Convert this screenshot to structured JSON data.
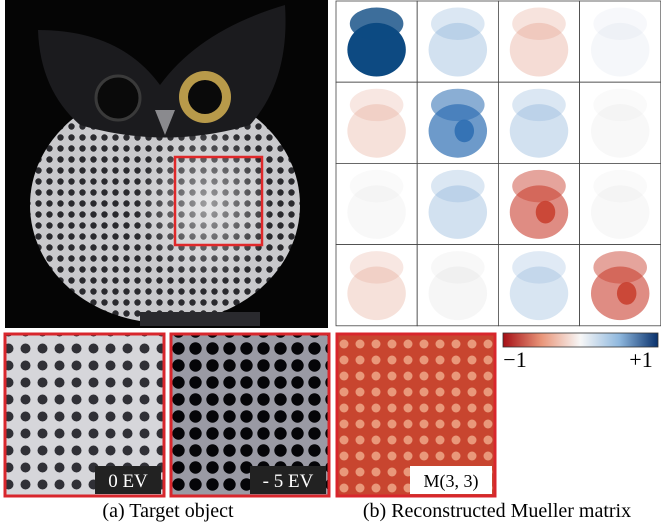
{
  "figure": {
    "panel_a": {
      "crops": [
        {
          "label": "0 EV"
        },
        {
          "label": "- 5 EV"
        }
      ],
      "caption": "(a) Target object"
    },
    "panel_b": {
      "crop_label": "M(3, 3)",
      "colorbar": {
        "min_label": "−1",
        "max_label": "+1"
      },
      "caption": "(b) Reconstructed Mueller matrix"
    }
  }
}
